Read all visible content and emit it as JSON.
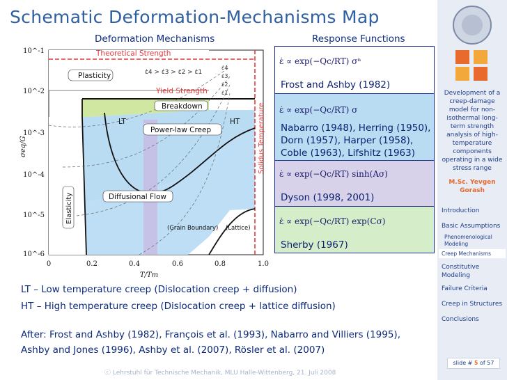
{
  "title": "Schematic Deformation-Mechanisms Map",
  "left_heading": "Deformation Mechanisms",
  "right_heading": "Response Functions",
  "map": {
    "y_ticks": [
      "10^-1",
      "10^-2",
      "10^-3",
      "10^-4",
      "10^-5",
      "10^-6"
    ],
    "x_ticks": [
      "0",
      "0.2",
      "0.4",
      "0.6",
      "0.8",
      "1.0"
    ],
    "x_label": "T/Tm",
    "y_label": "σeq/G",
    "theoretical_strength": "Theoretical Strength",
    "plasticity": "Plasticity",
    "yield_strength": "Yield Strength",
    "strain_order": "ε̇4 > ε̇3 > ε̇2 > ε̇1",
    "strain_rates": [
      "ε̇4",
      "ε̇3",
      "ε̇2",
      "ε̇1"
    ],
    "breakdown": "Breakdown",
    "lt": "LT",
    "ht": "HT",
    "power_law_creep": "Power-law Creep",
    "diffusional_flow": "Diffusional Flow",
    "grain_boundary": "(Grain Boundary)",
    "lattice": "(Lattice)",
    "elasticity": "Elasticity",
    "solidus": "Solidus Temperature"
  },
  "response_functions": [
    {
      "formula": "ε̇ ∝ exp(−Qc/RT) σⁿ",
      "citation": "Frost and Ashby (1982)",
      "color": "#ffffff"
    },
    {
      "formula": "ε̇ ∝ exp(−Qc/RT) σ",
      "citation": "Nabarro (1948), Herring (1950), Dorn (1957), Harper (1958), Coble (1963), Lifshitz (1963)",
      "color": "#b9dcf3"
    },
    {
      "formula": "ε̇ ∝ exp(−Qc/RT) sinh(Aσ)",
      "citation": "Dyson (1998, 2001)",
      "color": "#d7d2ea"
    },
    {
      "formula": "ε̇ ∝ exp(−Qc/RT) exp(Cσ)",
      "citation": "Sherby (1967)",
      "color": "#d6edc9"
    }
  ],
  "legend": [
    "LT – Low temperature creep (Dislocation creep + diffusion)",
    "HT – High temperature creep (Dislocation creep + lattice diffusion)"
  ],
  "after_line1": "After: Frost and Ashby (1982), François et al. (1993), Nabarro and Villiers (1995),",
  "after_line2": "Ashby and Jones (1996), Ashby et al. (2007), Rösler et al. (2007)",
  "footer": "ⓒ Lehrstuhl für Technische Mechanik, MLU Halle-Wittenberg, 21. Juli 2008",
  "sidebar": {
    "description": "Development of a creep-damage model for non-isothermal long-term strength analysis of high-temperature components operating in a wide stress range",
    "author": "M.Sc. Yevgen Gorash",
    "nav": [
      "Introduction",
      "Basic Assumptions",
      "Phenomenological Modeling",
      "Creep Mechanisms",
      "Constitutive Modeling",
      "Failure Criteria",
      "Creep in Structures",
      "Conclusions"
    ],
    "slide_prefix": "slide #",
    "slide_current": "5",
    "slide_sep": "of",
    "slide_total": "57"
  },
  "colors": {
    "title": "#2f5fa0",
    "accent": "#e86a2d",
    "creep": "#b9dcf3",
    "breakdown": "#cfe7a0",
    "theory": "#e23a3a"
  }
}
